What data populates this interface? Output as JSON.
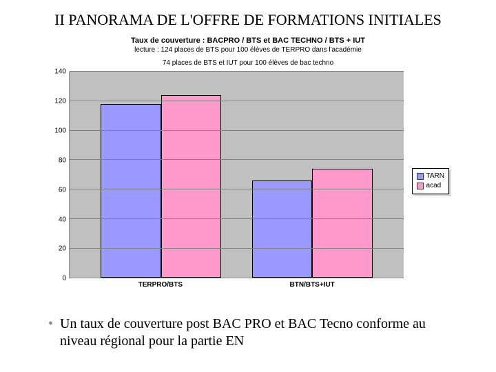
{
  "heading": "II PANORAMA DE L'OFFRE DE FORMATIONS INITIALES",
  "chart": {
    "type": "bar",
    "title": "Taux de couverture : BACPRO / BTS et BAC TECHNO / BTS + IUT",
    "subtitle_line1": "lecture :  124 places de BTS pour 100 élèves de TERPRO dans l'académie",
    "subtitle_line2": "74 places de BTS et IUT pour 100 élèves de bac techno",
    "ylim": [
      0,
      140
    ],
    "ytick_step": 20,
    "yticks": [
      0,
      20,
      40,
      60,
      80,
      100,
      120,
      140
    ],
    "categories": [
      "TERPRO/BTS",
      "BTN/BTS+IUT"
    ],
    "series": [
      {
        "name": "TARN",
        "color": "#9999ff",
        "values": [
          118,
          66
        ]
      },
      {
        "name": "acad",
        "color": "#ff99cc",
        "values": [
          124,
          74
        ]
      }
    ],
    "plot_bg": "#c0c0c0",
    "grid_color": "#808080",
    "bar_border": "#000000",
    "title_fontsize": 11,
    "subtitle_fontsize": 10,
    "tick_fontsize": 10
  },
  "bullet": {
    "text": "Un taux de couverture post BAC PRO et BAC Tecno conforme au niveau régional pour la partie EN"
  }
}
